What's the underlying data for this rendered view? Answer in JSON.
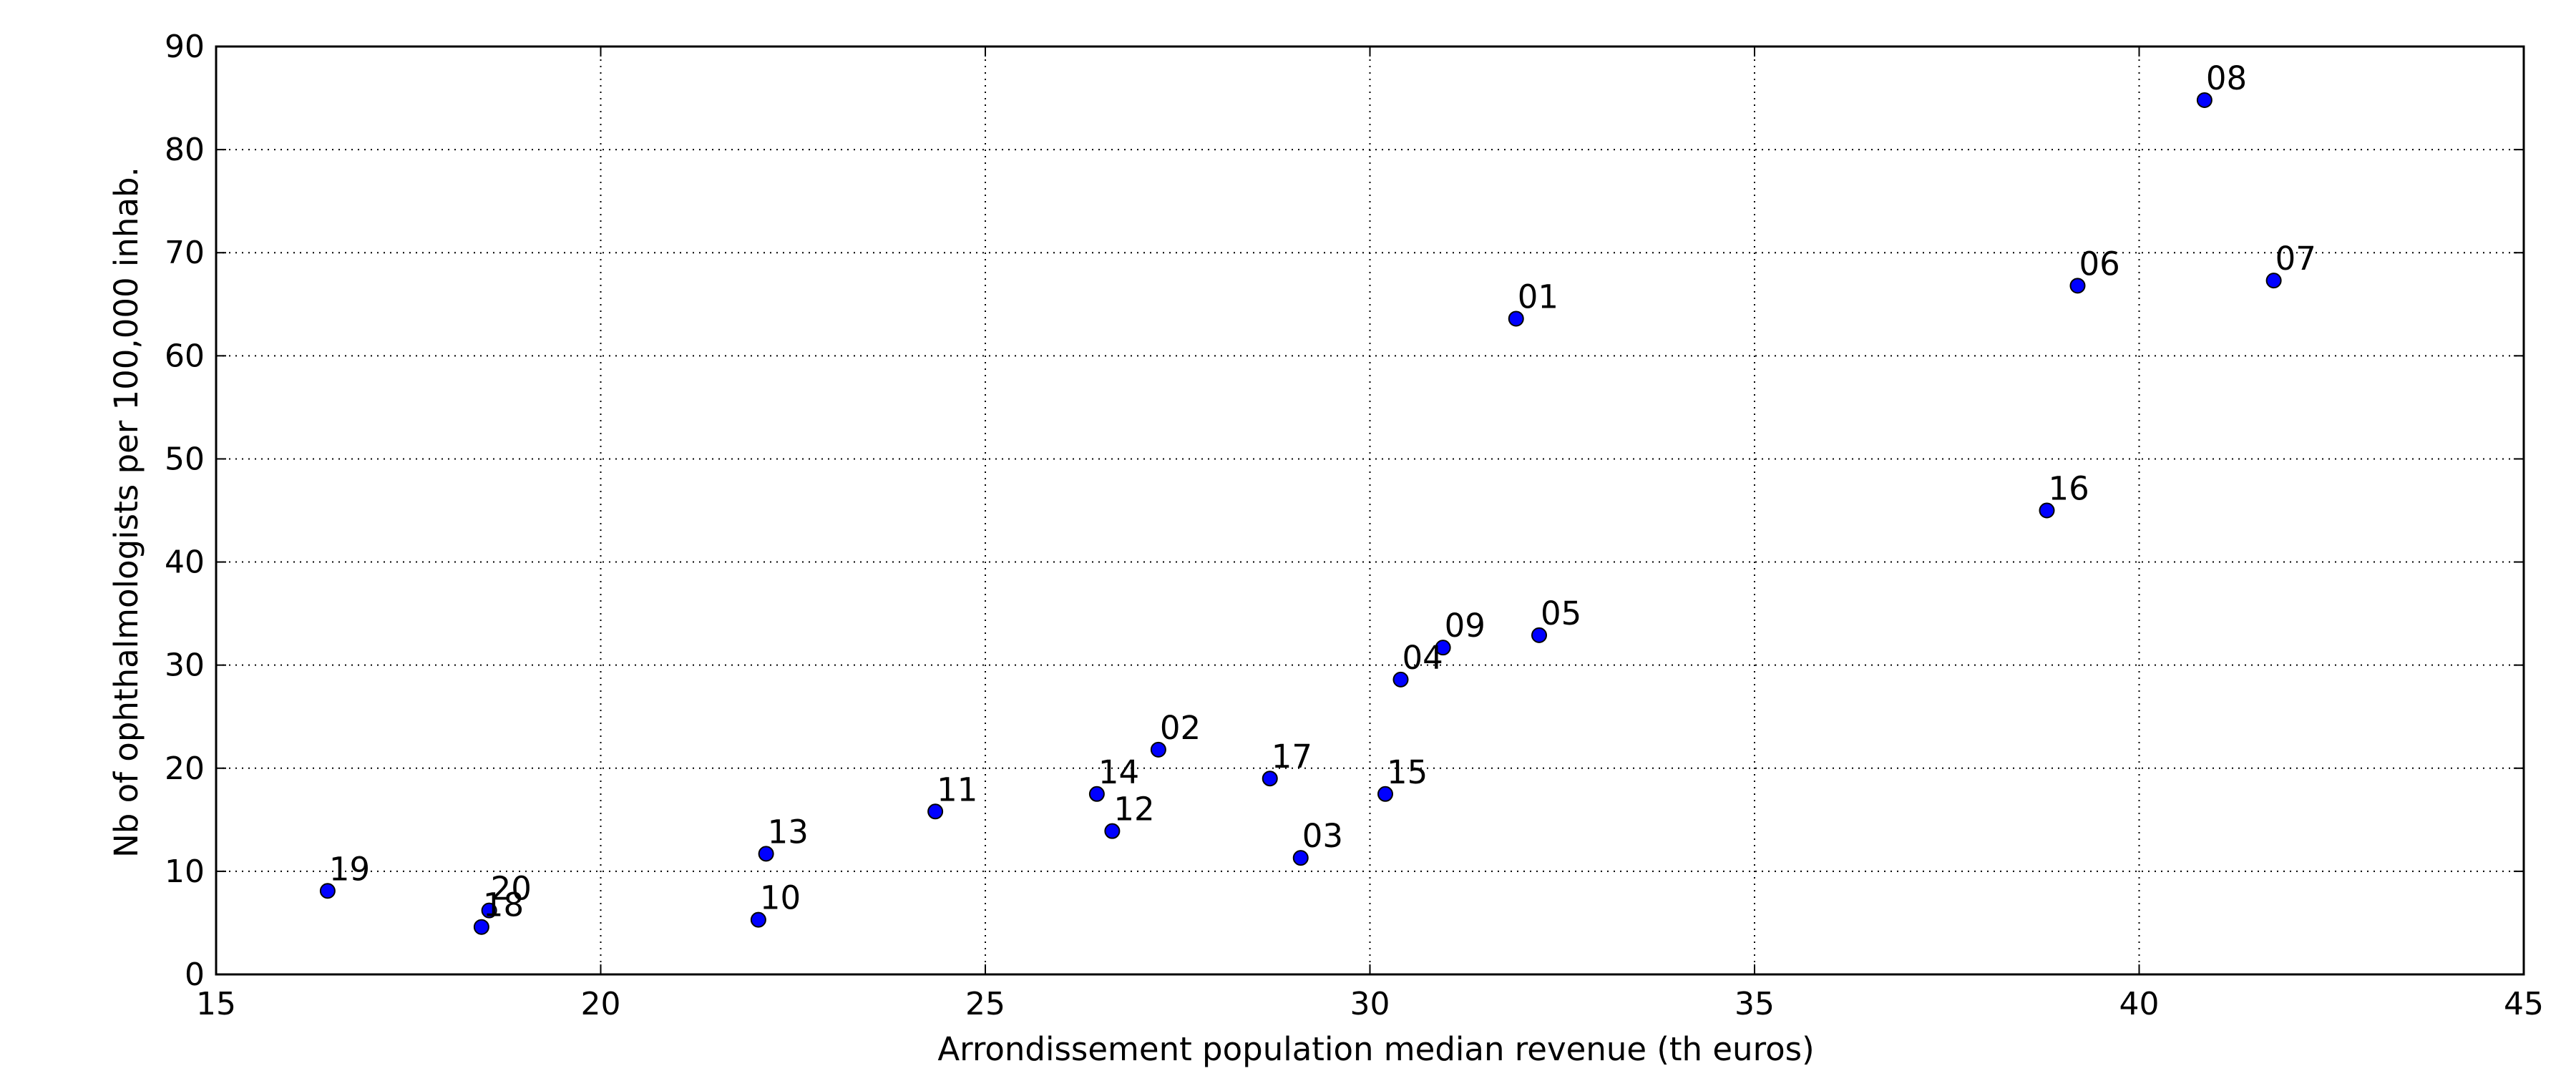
{
  "chart_data": {
    "type": "scatter",
    "title": "",
    "xlabel": "Arrondissement population median revenue (th euros)",
    "ylabel": "Nb of ophthalmologists per 100,000 inhab.",
    "xlim": [
      15,
      45
    ],
    "ylim": [
      0,
      90
    ],
    "x_ticks": [
      15,
      20,
      25,
      30,
      35,
      40,
      45
    ],
    "y_ticks": [
      0,
      10,
      20,
      30,
      40,
      50,
      60,
      70,
      80,
      90
    ],
    "grid": true,
    "grid_style": "dotted",
    "legend": "none",
    "marker_color": "#0000ff",
    "marker_edge_color": "#000000",
    "points": [
      {
        "label": "01",
        "x": 31.9,
        "y": 63.6
      },
      {
        "label": "02",
        "x": 27.25,
        "y": 21.8
      },
      {
        "label": "03",
        "x": 29.1,
        "y": 11.3
      },
      {
        "label": "04",
        "x": 30.4,
        "y": 28.6
      },
      {
        "label": "05",
        "x": 32.2,
        "y": 32.9
      },
      {
        "label": "06",
        "x": 39.2,
        "y": 66.8
      },
      {
        "label": "07",
        "x": 41.75,
        "y": 67.3
      },
      {
        "label": "08",
        "x": 40.85,
        "y": 84.8
      },
      {
        "label": "09",
        "x": 30.95,
        "y": 31.7
      },
      {
        "label": "10",
        "x": 22.05,
        "y": 5.3
      },
      {
        "label": "11",
        "x": 24.35,
        "y": 15.8
      },
      {
        "label": "12",
        "x": 26.65,
        "y": 13.9
      },
      {
        "label": "13",
        "x": 22.15,
        "y": 11.7
      },
      {
        "label": "14",
        "x": 26.45,
        "y": 17.5
      },
      {
        "label": "15",
        "x": 30.2,
        "y": 17.5
      },
      {
        "label": "16",
        "x": 38.8,
        "y": 45.0
      },
      {
        "label": "17",
        "x": 28.7,
        "y": 19.0
      },
      {
        "label": "18",
        "x": 18.45,
        "y": 4.6
      },
      {
        "label": "19",
        "x": 16.45,
        "y": 8.1
      },
      {
        "label": "20",
        "x": 18.55,
        "y": 6.2
      }
    ]
  }
}
